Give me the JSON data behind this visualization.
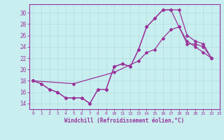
{
  "background_color": "#c8eef0",
  "grid_color": "#b0dddd",
  "line_color": "#993399",
  "marker_color": "#993399",
  "xlabel": "Windchill (Refroidissement éolien,°C)",
  "xlim": [
    -0.5,
    23
  ],
  "ylim": [
    13.0,
    31.5
  ],
  "yticks": [
    14,
    16,
    18,
    20,
    22,
    24,
    26,
    28,
    30
  ],
  "xticks": [
    0,
    1,
    2,
    3,
    4,
    5,
    6,
    7,
    8,
    9,
    10,
    11,
    12,
    13,
    14,
    15,
    16,
    17,
    18,
    19,
    20,
    21,
    22,
    23
  ],
  "line1_x": [
    0,
    1,
    2,
    3,
    4,
    5,
    6,
    7,
    8,
    9,
    10,
    11,
    12,
    13,
    14,
    15,
    16,
    17,
    18,
    19,
    20,
    21,
    22
  ],
  "line1_y": [
    18.0,
    17.5,
    16.5,
    16.0,
    15.0,
    15.0,
    15.0,
    14.0,
    16.5,
    16.5,
    20.5,
    21.0,
    20.5,
    23.5,
    27.5,
    29.0,
    30.5,
    30.5,
    30.5,
    26.0,
    25.0,
    24.5,
    22.0
  ],
  "line2_x": [
    0,
    1,
    2,
    3,
    4,
    5,
    6,
    7,
    8,
    9,
    10,
    11,
    12,
    13,
    14,
    15,
    16,
    17,
    18,
    19,
    20,
    21,
    22
  ],
  "line2_y": [
    18.0,
    17.5,
    16.5,
    16.0,
    15.0,
    15.0,
    15.0,
    14.0,
    16.5,
    16.5,
    20.5,
    21.0,
    20.5,
    23.5,
    27.5,
    29.0,
    30.5,
    30.5,
    27.5,
    25.0,
    24.0,
    23.0,
    22.0
  ],
  "line3_x": [
    0,
    5,
    10,
    13,
    14,
    15,
    16,
    17,
    18,
    19,
    20,
    21,
    22
  ],
  "line3_y": [
    18.0,
    17.5,
    19.5,
    21.5,
    23.0,
    23.5,
    25.5,
    27.0,
    27.5,
    24.5,
    24.5,
    24.0,
    22.0
  ],
  "figsize": [
    3.2,
    2.0
  ],
  "dpi": 100
}
